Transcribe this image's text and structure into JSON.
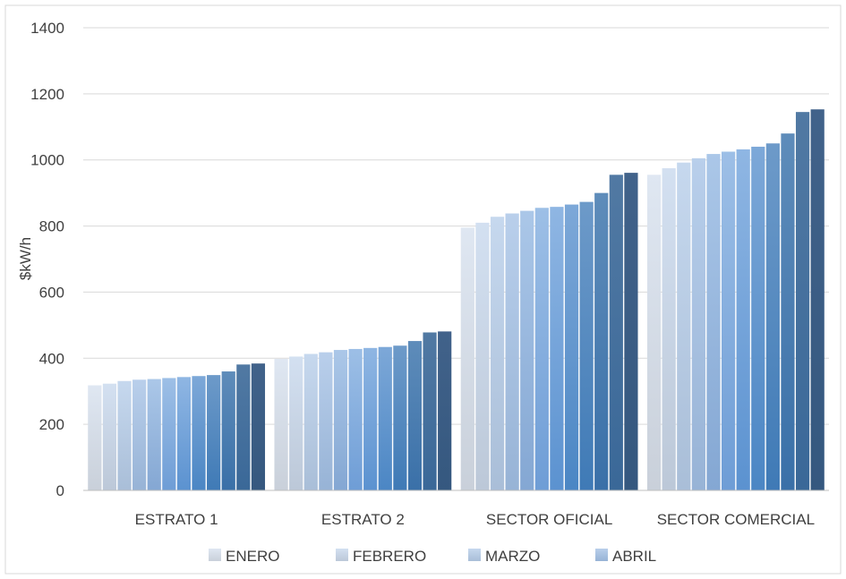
{
  "chart_data": {
    "type": "bar",
    "title": "",
    "xlabel": "",
    "ylabel": "$kW/h",
    "ylim": [
      0,
      1400
    ],
    "yticks": [
      0,
      200,
      400,
      600,
      800,
      1000,
      1200,
      1400
    ],
    "grid": true,
    "legend_position": "bottom",
    "categories": [
      "ESTRATO 1",
      "ESTRATO 2",
      "SECTOR OFICIAL",
      "SECTOR COMERCIAL"
    ],
    "series": [
      {
        "name": "ENERO",
        "values": [
          318,
          398,
          795,
          955
        ]
      },
      {
        "name": "FEBRERO",
        "values": [
          323,
          405,
          810,
          975
        ]
      },
      {
        "name": "MARZO",
        "values": [
          331,
          413,
          828,
          992
        ]
      },
      {
        "name": "ABRIL",
        "values": [
          335,
          418,
          838,
          1005
        ]
      },
      {
        "name": "",
        "values": [
          337,
          425,
          846,
          1018
        ]
      },
      {
        "name": "",
        "values": [
          340,
          428,
          855,
          1025
        ]
      },
      {
        "name": "",
        "values": [
          343,
          431,
          858,
          1032
        ]
      },
      {
        "name": "",
        "values": [
          346,
          434,
          865,
          1040
        ]
      },
      {
        "name": "",
        "values": [
          349,
          438,
          873,
          1050
        ]
      },
      {
        "name": "",
        "values": [
          360,
          452,
          900,
          1080
        ]
      },
      {
        "name": "",
        "values": [
          381,
          478,
          955,
          1145
        ]
      },
      {
        "name": "",
        "values": [
          384,
          481,
          961,
          1153
        ]
      }
    ]
  },
  "colors": {
    "series_top": [
      "#dfe7f2",
      "#d3e0f1",
      "#c6d8ee",
      "#b9cfeb",
      "#abc7e8",
      "#9dbfe6",
      "#8fb6e3",
      "#7da8d8",
      "#6d9ac9",
      "#5e8cba",
      "#5179a3",
      "#41628a"
    ],
    "series_bottom": [
      "#c9d0da",
      "#bcc8d8",
      "#a9bed8",
      "#97b3d6",
      "#84a7d3",
      "#6e9dd6",
      "#5b92d0",
      "#4b86c4",
      "#3f7ab6",
      "#3a70a8",
      "#3a6898",
      "#35587f"
    ],
    "grid": "#d9d9d9",
    "axis": "#bfbfbf",
    "text": "#404040"
  }
}
